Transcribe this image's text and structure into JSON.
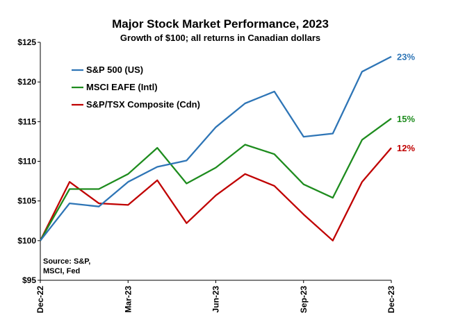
{
  "chart_data": {
    "type": "line",
    "title": "Major Stock Market Performance, 2023",
    "subtitle": "Growth of $100; all returns in Canadian dollars",
    "xlabel": "",
    "ylabel": "",
    "ylim": [
      95,
      125
    ],
    "yticks": [
      "$95",
      "$100",
      "$105",
      "$110",
      "$115",
      "$120",
      "$125"
    ],
    "ytick_values": [
      95,
      100,
      105,
      110,
      115,
      120,
      125
    ],
    "x": [
      "Dec-22",
      "Jan-23",
      "Feb-23",
      "Mar-23",
      "Apr-23",
      "May-23",
      "Jun-23",
      "Jul-23",
      "Aug-23",
      "Sep-23",
      "Oct-23",
      "Nov-23",
      "Dec-23"
    ],
    "xtick_labels": [
      {
        "index": 0,
        "label": "Dec-22"
      },
      {
        "index": 3,
        "label": "Mar-23"
      },
      {
        "index": 6,
        "label": "Jun-23"
      },
      {
        "index": 9,
        "label": "Sep-23"
      },
      {
        "index": 12,
        "label": "Dec-23"
      }
    ],
    "series": [
      {
        "name": "S&P 500 (US)",
        "color": "#2E75B6",
        "end_label": "23%",
        "values": [
          100,
          104.7,
          104.3,
          107.4,
          109.3,
          110.1,
          114.3,
          117.3,
          118.8,
          113.1,
          113.5,
          121.3,
          123.2
        ]
      },
      {
        "name": "MSCI EAFE (Intl)",
        "color": "#1E8C1E",
        "end_label": "15%",
        "values": [
          100,
          106.5,
          106.5,
          108.4,
          111.7,
          107.2,
          109.2,
          112.1,
          110.9,
          107.1,
          105.4,
          112.7,
          115.4
        ]
      },
      {
        "name": "S&P/TSX Composite (Cdn)",
        "color": "#C00000",
        "end_label": "12%",
        "values": [
          100,
          107.4,
          104.7,
          104.5,
          107.6,
          102.2,
          105.7,
          108.4,
          106.9,
          103.3,
          100.0,
          107.4,
          111.7
        ]
      }
    ],
    "legend": "top-left",
    "grid": false,
    "source_note": [
      "Source: S&P,",
      "MSCI, Fed"
    ]
  }
}
